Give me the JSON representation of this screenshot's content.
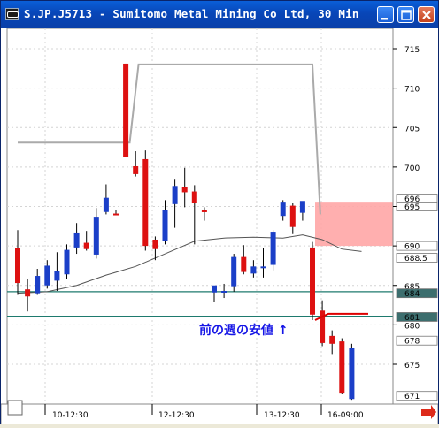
{
  "window": {
    "title": "S.JP.J5713 - Sumitomo Metal Mining Co Ltd, 30 Min",
    "icon": "cqg-app-icon",
    "controls": [
      "minimize-icon",
      "maximize-icon",
      "close-icon"
    ]
  },
  "chart_data": {
    "type": "candlestick",
    "title": "",
    "ylim": [
      670,
      718
    ],
    "yticks": [
      675,
      680,
      685,
      690,
      695,
      700,
      705,
      710,
      715
    ],
    "price_boxes": [
      {
        "label": "696",
        "value": 696,
        "color": "#ffffff"
      },
      {
        "label": "695",
        "value": 695,
        "color": "#ffffff"
      },
      {
        "label": "690",
        "value": 690,
        "color": "#ffffff"
      },
      {
        "label": "688.5",
        "value": 688.5,
        "color": "#ffffff"
      },
      {
        "label": "684",
        "value": 684,
        "color": "#3c6e6e"
      },
      {
        "label": "681",
        "value": 681,
        "color": "#3c6e6e"
      },
      {
        "label": "678",
        "value": 678,
        "color": "#ffffff"
      },
      {
        "label": "671",
        "value": 671,
        "color": "#ffffff"
      }
    ],
    "x_labels": [
      "10-12:30",
      "12-12:30",
      "13-12:30",
      "16-09:00"
    ],
    "annotation": {
      "text": "前の週の安値",
      "arrow": "↑",
      "color": "#1515e6"
    },
    "red_zone": {
      "from": 690,
      "to": 695.6,
      "color": "#ffa6a6"
    },
    "support_lines": [
      {
        "value": 684.2,
        "color": "#1e7a6e"
      },
      {
        "value": 681.1,
        "color": "#1e7a6e"
      }
    ],
    "candles": [
      {
        "o": 689.7,
        "h": 692.0,
        "l": 683.8,
        "c": 685.3
      },
      {
        "o": 684.5,
        "h": 685.8,
        "l": 681.7,
        "c": 683.6
      },
      {
        "o": 684.0,
        "h": 687.1,
        "l": 683.8,
        "c": 686.2
      },
      {
        "o": 685.0,
        "h": 688.2,
        "l": 684.6,
        "c": 687.5
      },
      {
        "o": 685.6,
        "h": 689.2,
        "l": 684.3,
        "c": 686.8
      },
      {
        "o": 686.4,
        "h": 690.2,
        "l": 685.8,
        "c": 689.5
      },
      {
        "o": 689.8,
        "h": 692.9,
        "l": 689.0,
        "c": 691.7
      },
      {
        "o": 690.4,
        "h": 691.9,
        "l": 689.4,
        "c": 689.6
      },
      {
        "o": 688.9,
        "h": 694.8,
        "l": 688.4,
        "c": 693.7
      },
      {
        "o": 694.3,
        "h": 697.8,
        "l": 694.0,
        "c": 696.1
      },
      {
        "o": 694.1,
        "h": 694.5,
        "l": 693.9,
        "c": 694.0
      },
      {
        "o": 713.1,
        "h": 713.1,
        "l": 701.3,
        "c": 701.3
      },
      {
        "o": 700.1,
        "h": 702.0,
        "l": 698.8,
        "c": 699.1
      },
      {
        "o": 701.0,
        "h": 702.1,
        "l": 689.4,
        "c": 690.0
      },
      {
        "o": 690.8,
        "h": 691.2,
        "l": 688.2,
        "c": 689.6
      },
      {
        "o": 690.6,
        "h": 695.8,
        "l": 690.2,
        "c": 694.6
      },
      {
        "o": 695.3,
        "h": 698.5,
        "l": 692.3,
        "c": 697.6
      },
      {
        "o": 697.5,
        "h": 699.9,
        "l": 694.9,
        "c": 696.8
      },
      {
        "o": 696.9,
        "h": 697.7,
        "l": 690.2,
        "c": 695.5
      },
      {
        "o": 694.5,
        "h": 694.9,
        "l": 693.2,
        "c": 694.4
      },
      {
        "o": 684.1,
        "h": 684.9,
        "l": 682.9,
        "c": 685.0
      },
      {
        "o": 684.3,
        "h": 685.2,
        "l": 683.4,
        "c": 684.3
      },
      {
        "o": 684.9,
        "h": 689.0,
        "l": 684.2,
        "c": 688.6
      },
      {
        "o": 688.6,
        "h": 690.1,
        "l": 686.4,
        "c": 686.7
      },
      {
        "o": 686.5,
        "h": 688.2,
        "l": 686.0,
        "c": 687.4
      },
      {
        "o": 687.3,
        "h": 689.7,
        "l": 686.0,
        "c": 687.4
      },
      {
        "o": 687.6,
        "h": 692.0,
        "l": 686.9,
        "c": 691.8
      },
      {
        "o": 693.8,
        "h": 695.8,
        "l": 693.2,
        "c": 695.6
      },
      {
        "o": 695.1,
        "h": 695.5,
        "l": 691.5,
        "c": 692.4
      },
      {
        "o": 694.2,
        "h": 695.6,
        "l": 693.2,
        "c": 695.7
      },
      {
        "o": 689.8,
        "h": 690.5,
        "l": 680.6,
        "c": 681.3
      },
      {
        "o": 681.8,
        "h": 683.1,
        "l": 677.3,
        "c": 677.7
      },
      {
        "o": 678.6,
        "h": 679.3,
        "l": 676.3,
        "c": 677.6
      },
      {
        "o": 677.9,
        "h": 678.3,
        "l": 671.3,
        "c": 671.4
      },
      {
        "o": 670.6,
        "h": 677.6,
        "l": 670.5,
        "c": 677.1
      }
    ],
    "overlay_high_line": [
      {
        "i": 0,
        "v": 703.1
      },
      {
        "i": 11.4,
        "v": 703.1
      },
      {
        "i": 12.3,
        "v": 713.0
      },
      {
        "i": 30.0,
        "v": 713.0
      },
      {
        "i": 30.8,
        "v": 694.0
      }
    ],
    "moving_average": [
      {
        "i": 0,
        "v": 684.0
      },
      {
        "i": 3,
        "v": 684.2
      },
      {
        "i": 6,
        "v": 685.0
      },
      {
        "i": 9,
        "v": 686.3
      },
      {
        "i": 12,
        "v": 687.4
      },
      {
        "i": 15,
        "v": 689.0
      },
      {
        "i": 18,
        "v": 690.6
      },
      {
        "i": 21,
        "v": 691.0
      },
      {
        "i": 24,
        "v": 691.1
      },
      {
        "i": 27,
        "v": 691.0
      },
      {
        "i": 29,
        "v": 691.4
      },
      {
        "i": 31,
        "v": 690.8
      },
      {
        "i": 33,
        "v": 689.6
      },
      {
        "i": 35,
        "v": 689.3
      }
    ],
    "low_marker": {
      "value": 681.4,
      "color": "#dd0000"
    },
    "colors": {
      "up": "#1b3fc8",
      "down": "#dd1111",
      "grid": "#d4d4d4"
    }
  },
  "status": {
    "scroll_arrow": "arrow-right-icon"
  }
}
